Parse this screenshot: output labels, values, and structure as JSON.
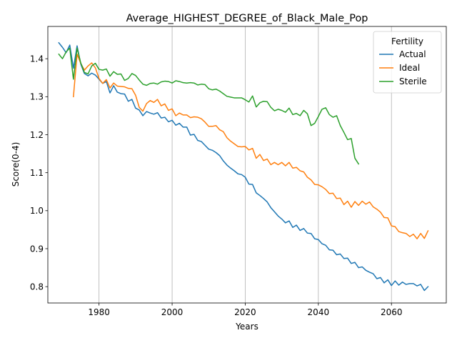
{
  "chart_data": {
    "type": "line",
    "title": "Average_HIGHEST_DEGREE_of_Black_Male_Pop",
    "xlabel": "Years",
    "ylabel": "Score(0-4)",
    "xlim": [
      1966,
      2075
    ],
    "ylim": [
      0.757,
      1.485
    ],
    "xticks": [
      1980,
      2000,
      2020,
      2040,
      2060
    ],
    "yticks": [
      0.8,
      0.9,
      1.0,
      1.1,
      1.2,
      1.3,
      1.4
    ],
    "ytick_labels": [
      "0.8",
      "0.9",
      "1.0",
      "1.1",
      "1.2",
      "1.3",
      "1.4"
    ],
    "grid": {
      "x": true,
      "y": false
    },
    "legend": {
      "title": "Fertility",
      "placement": "top-right"
    },
    "series": [
      {
        "name": "Actual",
        "color": "#1f77b4",
        "points": [
          [
            1969,
            1.442
          ],
          [
            1970,
            1.43
          ],
          [
            1971,
            1.416
          ],
          [
            1972,
            1.436
          ],
          [
            1973,
            1.375
          ],
          [
            1974,
            1.434
          ],
          [
            1975,
            1.386
          ],
          [
            1976,
            1.361
          ],
          [
            1977,
            1.355
          ],
          [
            1978,
            1.362
          ],
          [
            1979,
            1.357
          ],
          [
            1980,
            1.346
          ],
          [
            1981,
            1.335
          ],
          [
            1982,
            1.34
          ],
          [
            1983,
            1.31
          ],
          [
            1984,
            1.329
          ],
          [
            1985,
            1.312
          ],
          [
            1986,
            1.308
          ],
          [
            1987,
            1.307
          ],
          [
            1988,
            1.288
          ],
          [
            1989,
            1.293
          ],
          [
            1990,
            1.27
          ],
          [
            1991,
            1.265
          ],
          [
            1992,
            1.25
          ],
          [
            1993,
            1.261
          ],
          [
            1994,
            1.257
          ],
          [
            1995,
            1.254
          ],
          [
            1996,
            1.258
          ],
          [
            1997,
            1.244
          ],
          [
            1998,
            1.246
          ],
          [
            1999,
            1.234
          ],
          [
            2000,
            1.238
          ],
          [
            2001,
            1.225
          ],
          [
            2002,
            1.23
          ],
          [
            2003,
            1.22
          ],
          [
            2004,
            1.22
          ],
          [
            2005,
            1.199
          ],
          [
            2006,
            1.201
          ],
          [
            2007,
            1.185
          ],
          [
            2008,
            1.182
          ],
          [
            2009,
            1.172
          ],
          [
            2010,
            1.162
          ],
          [
            2011,
            1.159
          ],
          [
            2012,
            1.153
          ],
          [
            2013,
            1.145
          ],
          [
            2014,
            1.131
          ],
          [
            2015,
            1.12
          ],
          [
            2016,
            1.112
          ],
          [
            2017,
            1.105
          ],
          [
            2018,
            1.097
          ],
          [
            2019,
            1.095
          ],
          [
            2020,
            1.088
          ],
          [
            2021,
            1.07
          ],
          [
            2022,
            1.069
          ],
          [
            2023,
            1.047
          ],
          [
            2024,
            1.04
          ],
          [
            2025,
            1.032
          ],
          [
            2026,
            1.023
          ],
          [
            2027,
            1.008
          ],
          [
            2028,
            0.997
          ],
          [
            2029,
            0.986
          ],
          [
            2030,
            0.978
          ],
          [
            2031,
            0.968
          ],
          [
            2032,
            0.973
          ],
          [
            2033,
            0.956
          ],
          [
            2034,
            0.962
          ],
          [
            2035,
            0.948
          ],
          [
            2036,
            0.953
          ],
          [
            2037,
            0.941
          ],
          [
            2038,
            0.94
          ],
          [
            2039,
            0.926
          ],
          [
            2040,
            0.924
          ],
          [
            2041,
            0.913
          ],
          [
            2042,
            0.909
          ],
          [
            2043,
            0.897
          ],
          [
            2044,
            0.896
          ],
          [
            2045,
            0.884
          ],
          [
            2046,
            0.886
          ],
          [
            2047,
            0.874
          ],
          [
            2048,
            0.875
          ],
          [
            2049,
            0.861
          ],
          [
            2050,
            0.864
          ],
          [
            2051,
            0.85
          ],
          [
            2052,
            0.852
          ],
          [
            2053,
            0.843
          ],
          [
            2054,
            0.838
          ],
          [
            2055,
            0.834
          ],
          [
            2056,
            0.821
          ],
          [
            2057,
            0.824
          ],
          [
            2058,
            0.81
          ],
          [
            2059,
            0.818
          ],
          [
            2060,
            0.803
          ],
          [
            2061,
            0.815
          ],
          [
            2062,
            0.804
          ],
          [
            2063,
            0.812
          ],
          [
            2064,
            0.806
          ],
          [
            2065,
            0.808
          ],
          [
            2066,
            0.808
          ],
          [
            2067,
            0.802
          ],
          [
            2068,
            0.806
          ],
          [
            2069,
            0.79
          ],
          [
            2070,
            0.8
          ]
        ]
      },
      {
        "name": "Ideal",
        "color": "#ff7f0e",
        "points": [
          [
            1973,
            1.3
          ],
          [
            1974,
            1.412
          ],
          [
            1975,
            1.388
          ],
          [
            1976,
            1.37
          ],
          [
            1977,
            1.381
          ],
          [
            1978,
            1.389
          ],
          [
            1979,
            1.376
          ],
          [
            1980,
            1.348
          ],
          [
            1981,
            1.335
          ],
          [
            1982,
            1.345
          ],
          [
            1983,
            1.323
          ],
          [
            1984,
            1.336
          ],
          [
            1985,
            1.328
          ],
          [
            1986,
            1.327
          ],
          [
            1987,
            1.326
          ],
          [
            1988,
            1.322
          ],
          [
            1989,
            1.321
          ],
          [
            1990,
            1.304
          ],
          [
            1991,
            1.272
          ],
          [
            1992,
            1.262
          ],
          [
            1993,
            1.282
          ],
          [
            1994,
            1.29
          ],
          [
            1995,
            1.285
          ],
          [
            1996,
            1.293
          ],
          [
            1997,
            1.276
          ],
          [
            1998,
            1.281
          ],
          [
            1999,
            1.264
          ],
          [
            2000,
            1.268
          ],
          [
            2001,
            1.25
          ],
          [
            2002,
            1.257
          ],
          [
            2003,
            1.252
          ],
          [
            2004,
            1.252
          ],
          [
            2005,
            1.245
          ],
          [
            2006,
            1.247
          ],
          [
            2007,
            1.246
          ],
          [
            2008,
            1.242
          ],
          [
            2009,
            1.233
          ],
          [
            2010,
            1.222
          ],
          [
            2011,
            1.222
          ],
          [
            2012,
            1.224
          ],
          [
            2013,
            1.213
          ],
          [
            2014,
            1.208
          ],
          [
            2015,
            1.192
          ],
          [
            2016,
            1.183
          ],
          [
            2017,
            1.176
          ],
          [
            2018,
            1.169
          ],
          [
            2019,
            1.168
          ],
          [
            2020,
            1.169
          ],
          [
            2021,
            1.16
          ],
          [
            2022,
            1.164
          ],
          [
            2023,
            1.138
          ],
          [
            2024,
            1.148
          ],
          [
            2025,
            1.132
          ],
          [
            2026,
            1.136
          ],
          [
            2027,
            1.121
          ],
          [
            2028,
            1.127
          ],
          [
            2029,
            1.121
          ],
          [
            2030,
            1.127
          ],
          [
            2031,
            1.118
          ],
          [
            2032,
            1.127
          ],
          [
            2033,
            1.112
          ],
          [
            2034,
            1.114
          ],
          [
            2035,
            1.105
          ],
          [
            2036,
            1.102
          ],
          [
            2037,
            1.088
          ],
          [
            2038,
            1.081
          ],
          [
            2039,
            1.069
          ],
          [
            2040,
            1.068
          ],
          [
            2041,
            1.063
          ],
          [
            2042,
            1.056
          ],
          [
            2043,
            1.045
          ],
          [
            2044,
            1.046
          ],
          [
            2045,
            1.032
          ],
          [
            2046,
            1.033
          ],
          [
            2047,
            1.016
          ],
          [
            2048,
            1.025
          ],
          [
            2049,
            1.009
          ],
          [
            2050,
            1.024
          ],
          [
            2051,
            1.014
          ],
          [
            2052,
            1.025
          ],
          [
            2053,
            1.017
          ],
          [
            2054,
            1.023
          ],
          [
            2055,
            1.01
          ],
          [
            2056,
            1.004
          ],
          [
            2057,
            0.996
          ],
          [
            2058,
            0.982
          ],
          [
            2059,
            0.981
          ],
          [
            2060,
            0.96
          ],
          [
            2061,
            0.958
          ],
          [
            2062,
            0.945
          ],
          [
            2063,
            0.942
          ],
          [
            2064,
            0.94
          ],
          [
            2065,
            0.932
          ],
          [
            2066,
            0.938
          ],
          [
            2067,
            0.926
          ],
          [
            2068,
            0.94
          ],
          [
            2069,
            0.927
          ],
          [
            2070,
            0.947
          ]
        ]
      },
      {
        "name": "Sterile",
        "color": "#2ca02c",
        "points": [
          [
            1969,
            1.412
          ],
          [
            1970,
            1.4
          ],
          [
            1971,
            1.418
          ],
          [
            1972,
            1.428
          ],
          [
            1973,
            1.346
          ],
          [
            1974,
            1.428
          ],
          [
            1975,
            1.389
          ],
          [
            1976,
            1.364
          ],
          [
            1977,
            1.36
          ],
          [
            1978,
            1.381
          ],
          [
            1979,
            1.388
          ],
          [
            1980,
            1.372
          ],
          [
            1981,
            1.37
          ],
          [
            1982,
            1.373
          ],
          [
            1983,
            1.354
          ],
          [
            1984,
            1.366
          ],
          [
            1985,
            1.359
          ],
          [
            1986,
            1.36
          ],
          [
            1987,
            1.343
          ],
          [
            1988,
            1.348
          ],
          [
            1989,
            1.361
          ],
          [
            1990,
            1.356
          ],
          [
            1991,
            1.344
          ],
          [
            1992,
            1.333
          ],
          [
            1993,
            1.33
          ],
          [
            1994,
            1.335
          ],
          [
            1995,
            1.336
          ],
          [
            1996,
            1.333
          ],
          [
            1997,
            1.339
          ],
          [
            1998,
            1.341
          ],
          [
            1999,
            1.34
          ],
          [
            2000,
            1.336
          ],
          [
            2001,
            1.342
          ],
          [
            2002,
            1.34
          ],
          [
            2003,
            1.337
          ],
          [
            2004,
            1.336
          ],
          [
            2005,
            1.337
          ],
          [
            2006,
            1.336
          ],
          [
            2007,
            1.331
          ],
          [
            2008,
            1.333
          ],
          [
            2009,
            1.332
          ],
          [
            2010,
            1.321
          ],
          [
            2011,
            1.318
          ],
          [
            2012,
            1.32
          ],
          [
            2013,
            1.315
          ],
          [
            2014,
            1.308
          ],
          [
            2015,
            1.301
          ],
          [
            2016,
            1.299
          ],
          [
            2017,
            1.297
          ],
          [
            2018,
            1.297
          ],
          [
            2019,
            1.297
          ],
          [
            2020,
            1.292
          ],
          [
            2021,
            1.286
          ],
          [
            2022,
            1.302
          ],
          [
            2023,
            1.273
          ],
          [
            2024,
            1.284
          ],
          [
            2025,
            1.288
          ],
          [
            2026,
            1.287
          ],
          [
            2027,
            1.272
          ],
          [
            2028,
            1.263
          ],
          [
            2029,
            1.267
          ],
          [
            2030,
            1.264
          ],
          [
            2031,
            1.259
          ],
          [
            2032,
            1.27
          ],
          [
            2033,
            1.253
          ],
          [
            2034,
            1.256
          ],
          [
            2035,
            1.25
          ],
          [
            2036,
            1.264
          ],
          [
            2037,
            1.255
          ],
          [
            2038,
            1.224
          ],
          [
            2039,
            1.23
          ],
          [
            2040,
            1.248
          ],
          [
            2041,
            1.267
          ],
          [
            2042,
            1.271
          ],
          [
            2043,
            1.253
          ],
          [
            2044,
            1.246
          ],
          [
            2045,
            1.25
          ],
          [
            2046,
            1.224
          ],
          [
            2047,
            1.206
          ],
          [
            2048,
            1.187
          ],
          [
            2049,
            1.19
          ],
          [
            2050,
            1.138
          ],
          [
            2051,
            1.123
          ]
        ]
      }
    ]
  }
}
